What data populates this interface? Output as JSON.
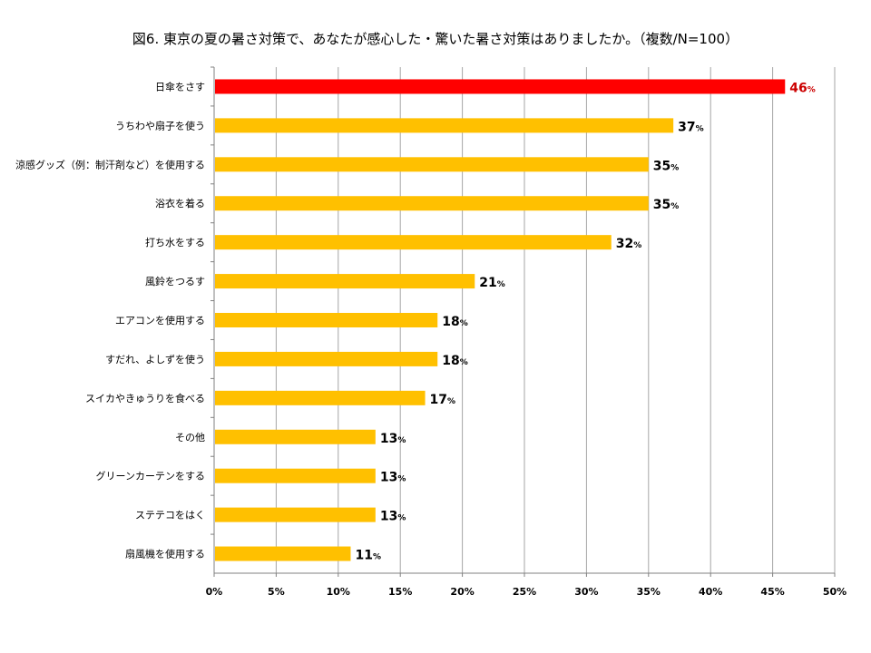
{
  "chart_data": {
    "type": "bar",
    "orientation": "horizontal",
    "title": "図6. 東京の夏の暑さ対策で、あなたが感心した・驚いた暑さ対策はありましたか。（複数/N=100）",
    "categories": [
      "日傘をさす",
      "うちわや扇子を使う",
      "涼感グッズ（例：制汗剤など）を使用する",
      "浴衣を着る",
      "打ち水をする",
      "風鈴をつるす",
      "エアコンを使用する",
      "すだれ、よしずを使う",
      "スイカやきゅうりを食べる",
      "その他",
      "グリーンカーテンをする",
      "ステテコをはく",
      "扇風機を使用する"
    ],
    "values": [
      46,
      37,
      35,
      35,
      32,
      21,
      18,
      18,
      17,
      13,
      13,
      13,
      11
    ],
    "value_unit": "%",
    "xlim": [
      0,
      50
    ],
    "xticks": [
      0,
      5,
      10,
      15,
      20,
      25,
      30,
      35,
      40,
      45,
      50
    ],
    "xtick_labels": [
      "0%",
      "5%",
      "10%",
      "15%",
      "20%",
      "25%",
      "30%",
      "35%",
      "40%",
      "45%",
      "50%"
    ],
    "grid": "vertical",
    "highlight_index": 0,
    "colors": {
      "highlight": "#ff0000",
      "bar": "#ffc000",
      "highlight_label": "#cc0000",
      "grid": "#a6a6a6",
      "axis": "#808080"
    }
  }
}
